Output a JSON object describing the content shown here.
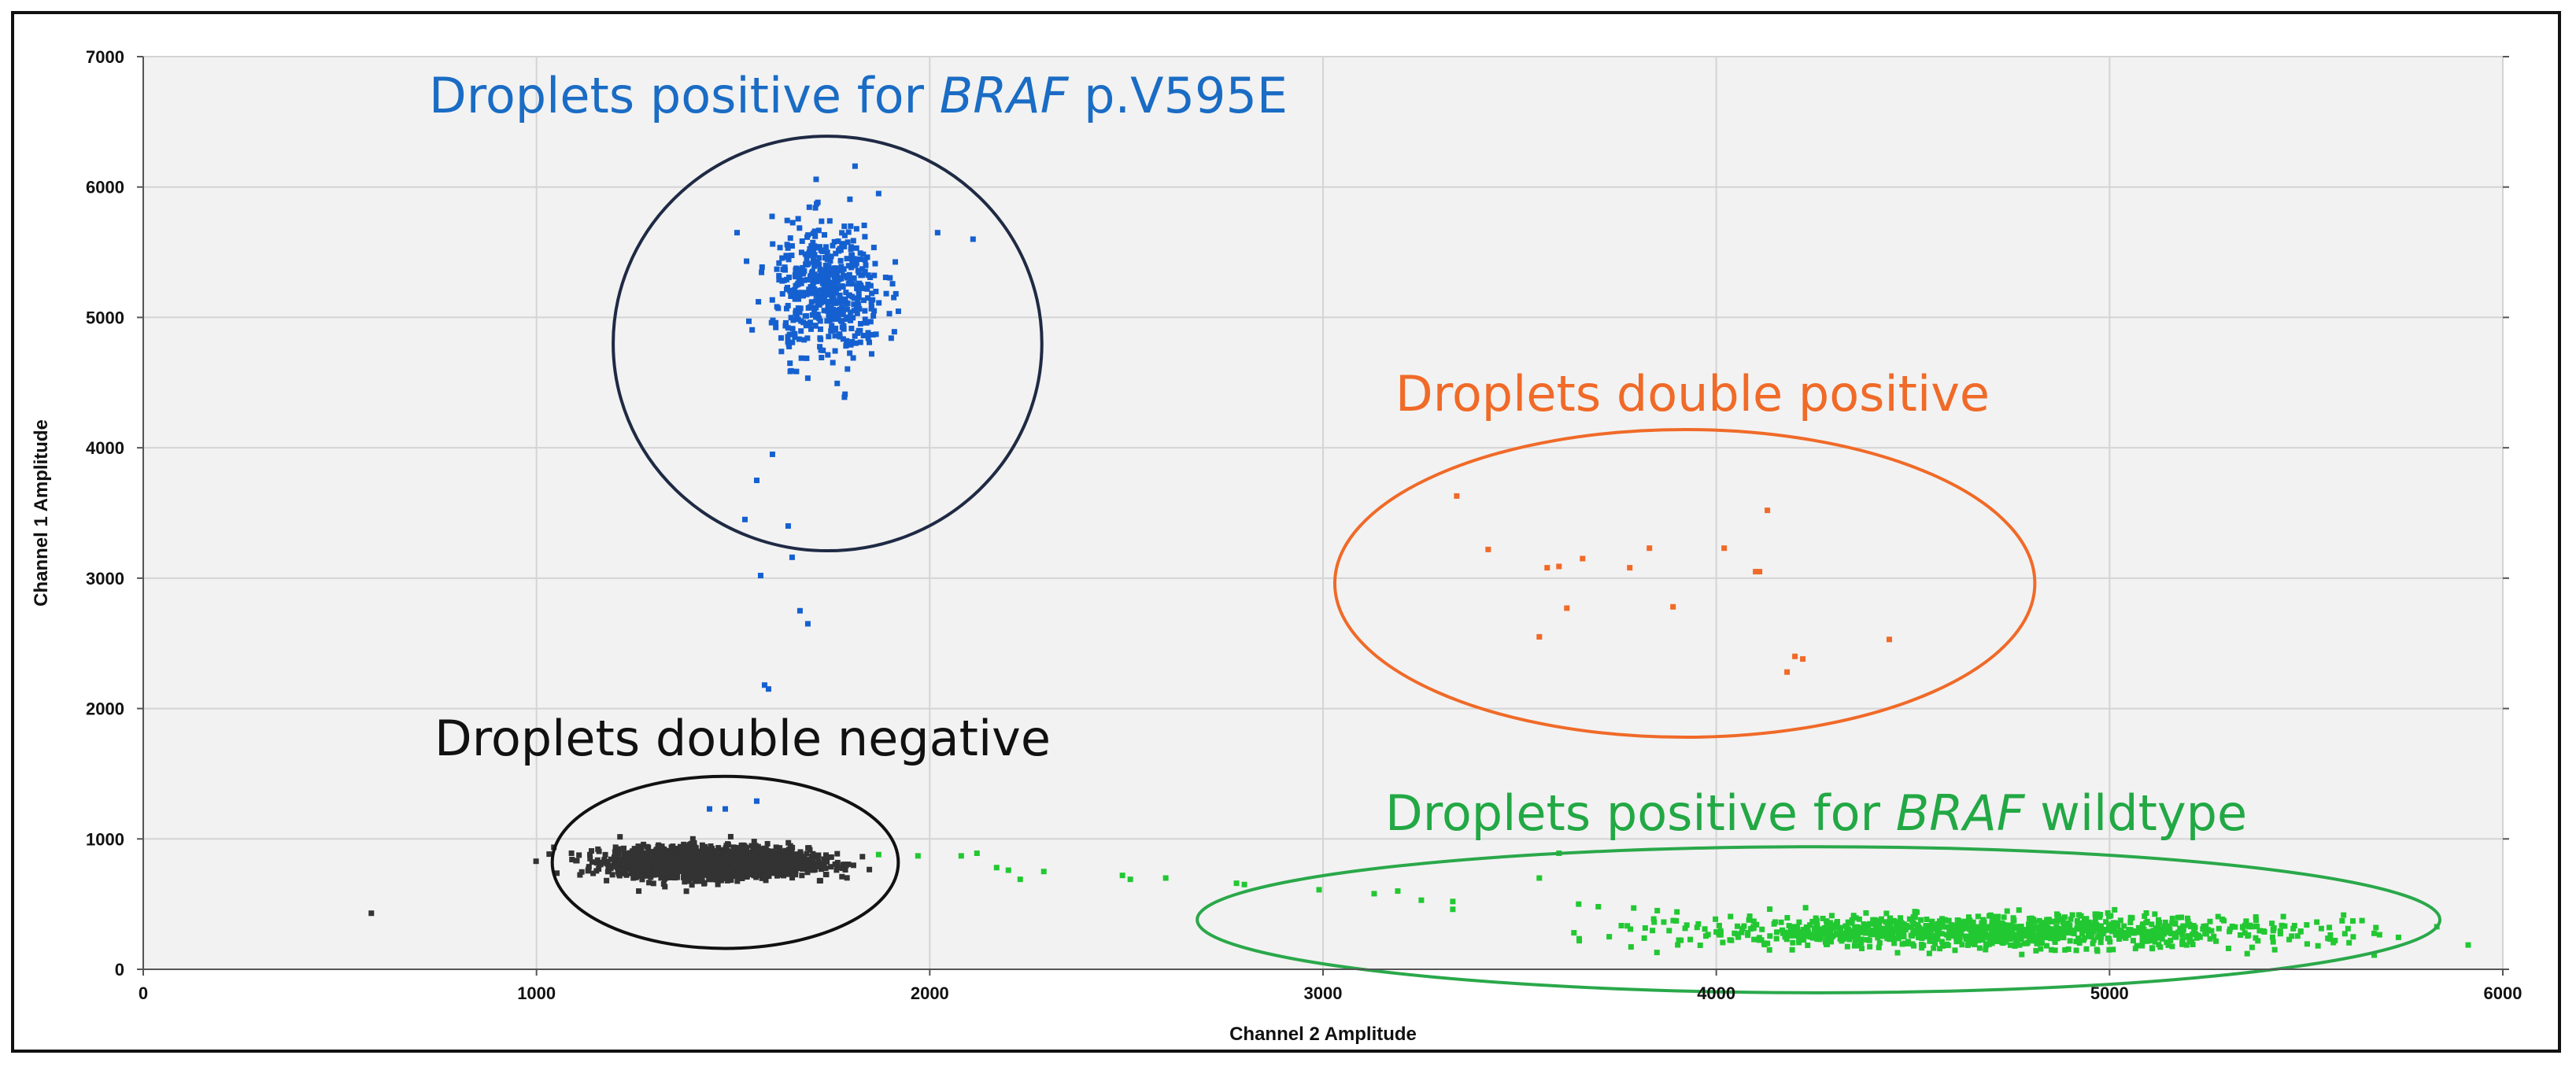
{
  "chart_data": {
    "type": "scatter",
    "title": "",
    "xlabel": "Channel 2 Amplitude",
    "ylabel": "Channel 1 Amplitude",
    "xlim": [
      0,
      6000
    ],
    "ylim": [
      0,
      7000
    ],
    "xticks": [
      0,
      1000,
      2000,
      3000,
      4000,
      5000,
      6000
    ],
    "yticks": [
      0,
      1000,
      2000,
      3000,
      4000,
      5000,
      6000,
      7000
    ],
    "grid": true,
    "colors": {
      "negative": "#333333",
      "mutant": "#1560d0",
      "double": "#f06a28",
      "wildtype": "#22c832",
      "negative_ring": "#111111",
      "mutant_ring": "#1f2a44",
      "double_ring": "#f06a28",
      "wildtype_ring": "#2aa84a",
      "plot_bg": "#f2f2f2",
      "grid": "#d4d4d4"
    },
    "series": [
      {
        "name": "Droplets double negative",
        "color": "#333333",
        "center": [
          1450,
          820
        ],
        "spread": [
          120,
          55
        ],
        "count": 2500,
        "extra_points": [
          [
            580,
            430
          ],
          [
            1260,
            600
          ]
        ]
      },
      {
        "name": "Droplets positive for BRAF p.V595E",
        "color": "#1560d0",
        "center": [
          1740,
          5200
        ],
        "spread": [
          70,
          260
        ],
        "count": 520,
        "extra_points": [
          [
            1510,
            5650
          ],
          [
            1530,
            3450
          ],
          [
            1570,
            3020
          ],
          [
            1640,
            3400
          ],
          [
            1650,
            3160
          ],
          [
            1670,
            2750
          ],
          [
            1690,
            2650
          ],
          [
            1580,
            2180
          ],
          [
            1590,
            2150
          ],
          [
            1440,
            1230
          ],
          [
            1480,
            1230
          ],
          [
            1560,
            1290
          ],
          [
            2020,
            5650
          ],
          [
            2110,
            5600
          ],
          [
            1810,
            6160
          ],
          [
            1870,
            5950
          ],
          [
            1560,
            3750
          ],
          [
            1600,
            3950
          ]
        ]
      },
      {
        "name": "Droplets double positive",
        "color": "#f06a28",
        "points": [
          [
            3340,
            3630
          ],
          [
            3420,
            3220
          ],
          [
            3570,
            3080
          ],
          [
            3600,
            3090
          ],
          [
            3620,
            2770
          ],
          [
            3660,
            3150
          ],
          [
            3780,
            3080
          ],
          [
            3830,
            3230
          ],
          [
            3890,
            2780
          ],
          [
            4020,
            3230
          ],
          [
            4100,
            3050
          ],
          [
            4110,
            3050
          ],
          [
            4130,
            3520
          ],
          [
            3550,
            2550
          ],
          [
            4180,
            2280
          ],
          [
            4200,
            2400
          ],
          [
            4220,
            2380
          ],
          [
            4440,
            2530
          ]
        ]
      },
      {
        "name": "Droplets positive for BRAF wildtype",
        "color": "#22c832",
        "center": [
          4700,
          290
        ],
        "spread": [
          380,
          60
        ],
        "count": 1100,
        "extra_points": [
          [
            1870,
            880
          ],
          [
            1970,
            870
          ],
          [
            2080,
            870
          ],
          [
            2120,
            890
          ],
          [
            2170,
            780
          ],
          [
            2200,
            760
          ],
          [
            2230,
            690
          ],
          [
            2290,
            750
          ],
          [
            2490,
            720
          ],
          [
            2510,
            690
          ],
          [
            2600,
            700
          ],
          [
            2780,
            660
          ],
          [
            2800,
            650
          ],
          [
            2990,
            610
          ],
          [
            3130,
            580
          ],
          [
            3190,
            600
          ],
          [
            3250,
            530
          ],
          [
            3330,
            520
          ],
          [
            3330,
            460
          ],
          [
            3550,
            700
          ],
          [
            3600,
            890
          ],
          [
            3650,
            500
          ],
          [
            3700,
            480
          ],
          [
            3790,
            470
          ],
          [
            3850,
            450
          ],
          [
            3900,
            440
          ],
          [
            5530,
            180
          ],
          [
            5420,
            150
          ],
          [
            5350,
            120
          ]
        ]
      }
    ],
    "annotations": [
      {
        "parts": [
          {
            "text": "Droplets positive for ",
            "italic": false
          },
          {
            "text": "BRAF",
            "italic": true
          },
          {
            "text": " p.V595E",
            "italic": false
          }
        ],
        "color": "#1a6cc4"
      },
      {
        "parts": [
          {
            "text": "Droplets double positive",
            "italic": false
          }
        ],
        "color": "#f06a28"
      },
      {
        "parts": [
          {
            "text": "Droplets double negative",
            "italic": false
          }
        ],
        "color": "#111111"
      },
      {
        "parts": [
          {
            "text": "Droplets positive for ",
            "italic": false
          },
          {
            "text": "BRAF",
            "italic": true
          },
          {
            "text": " wildtype",
            "italic": false
          }
        ],
        "color": "#22a844"
      }
    ],
    "cluster_outlines": [
      {
        "name": "mutant",
        "center": [
          1740,
          4800
        ],
        "radii": [
          545,
          1590
        ]
      },
      {
        "name": "double",
        "center": [
          3920,
          2960
        ],
        "radii": [
          890,
          1180
        ]
      },
      {
        "name": "negative",
        "center": [
          1480,
          820
        ],
        "radii": [
          440,
          660
        ]
      },
      {
        "name": "wildtype",
        "center": [
          4260,
          380
        ],
        "radii": [
          1580,
          560
        ]
      }
    ]
  }
}
